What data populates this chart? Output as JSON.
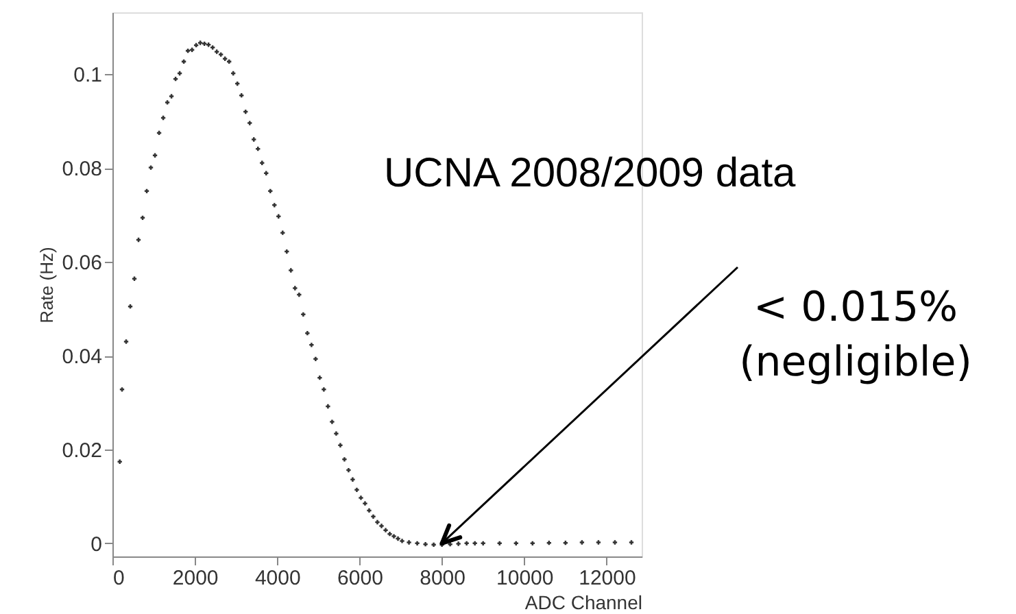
{
  "chart_data": {
    "type": "scatter",
    "xlabel": "ADC Channel",
    "ylabel": "Rate (Hz)",
    "x": [
      178,
      233,
      333,
      433,
      533,
      633,
      733,
      833,
      933,
      1033,
      1133,
      1233,
      1333,
      1433,
      1533,
      1633,
      1733,
      1833,
      1933,
      2033,
      2133,
      2233,
      2333,
      2433,
      2533,
      2633,
      2733,
      2833,
      2933,
      3033,
      3133,
      3233,
      3333,
      3433,
      3533,
      3633,
      3733,
      3833,
      3933,
      4033,
      4133,
      4233,
      4333,
      4433,
      4533,
      4633,
      4733,
      4833,
      4933,
      5033,
      5133,
      5233,
      5333,
      5433,
      5533,
      5633,
      5733,
      5833,
      5933,
      6033,
      6133,
      6233,
      6333,
      6433,
      6533,
      6633,
      6733,
      6833,
      6933,
      7033,
      7200,
      7400,
      7600,
      7800,
      8000,
      8200,
      8400,
      8600,
      8800,
      9000,
      9400,
      9800,
      10200,
      10600,
      11000,
      11400,
      11800,
      12200,
      12600
    ],
    "series": [
      {
        "color": "#333333",
        "values": [
          0.0174,
          0.0328,
          0.043,
          0.0505,
          0.0564,
          0.0647,
          0.0694,
          0.0751,
          0.0801,
          0.0827,
          0.0875,
          0.0907,
          0.094,
          0.0953,
          0.099,
          0.1002,
          0.1027,
          0.105,
          0.1052,
          0.1062,
          0.1067,
          0.1065,
          0.1063,
          0.1057,
          0.1048,
          0.1042,
          0.1033,
          0.1027,
          0.1002,
          0.098,
          0.0955,
          0.092,
          0.0896,
          0.0861,
          0.0841,
          0.0811,
          0.0789,
          0.0751,
          0.0721,
          0.0697,
          0.0662,
          0.0622,
          0.0582,
          0.0544,
          0.053,
          0.0488,
          0.0448,
          0.0423,
          0.0393,
          0.0353,
          0.0328,
          0.0292,
          0.0259,
          0.0234,
          0.0209,
          0.0179,
          0.0156,
          0.0136,
          0.0114,
          0.0097,
          0.0085,
          0.007,
          0.0057,
          0.0045,
          0.0037,
          0.0028,
          0.002,
          0.0015,
          0.001,
          0.0005,
          0.0002,
          0.0,
          -0.0002,
          -0.0003,
          -0.0003,
          -0.0002,
          -0.0001,
          0.0,
          0.0,
          0.0,
          0.0,
          0.0,
          0.0,
          0.0001,
          0.0001,
          0.0002,
          0.0002,
          0.0002,
          0.0002
        ]
      }
    ],
    "xlim": [
      0,
      12850
    ],
    "ylim": [
      -0.0028,
      0.1132
    ],
    "xticks": [
      0,
      2000,
      4000,
      6000,
      8000,
      10000,
      12000
    ],
    "yticks": [
      0,
      0.02,
      0.04,
      0.06,
      0.08,
      0.1
    ],
    "marker": "cross",
    "grid": false,
    "annotations": [
      "UCNA 2008/2009 data",
      {
        "text": "< 0.015%\n(negligible)",
        "x": 8000,
        "y": 0
      }
    ]
  }
}
